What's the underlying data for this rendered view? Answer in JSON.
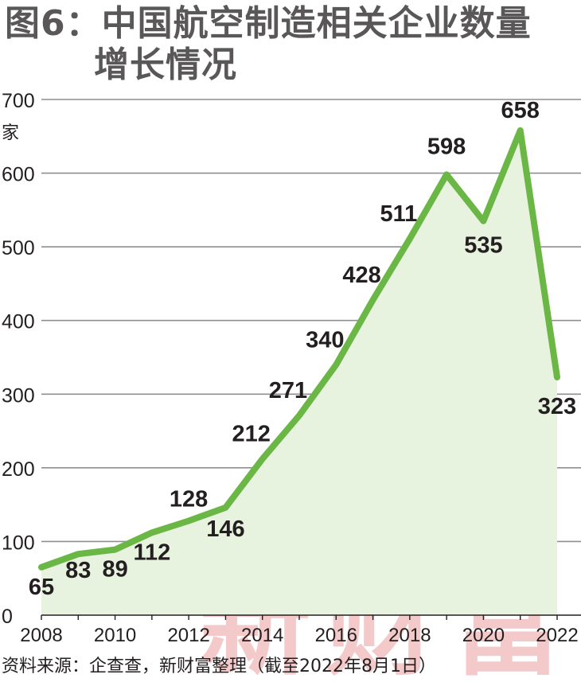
{
  "title_line1": "图6：中国航空制造相关企业数量",
  "title_line2": "增长情况",
  "source": "资料来源：企查查，新财富整理（截至2022年8月1日）",
  "watermark": "新财富",
  "chart_data": {
    "type": "area",
    "title": "图6：中国航空制造相关企业数量增长情况",
    "ylabel": "家",
    "xlabel": "",
    "x": [
      2008,
      2009,
      2010,
      2011,
      2012,
      2013,
      2014,
      2015,
      2016,
      2017,
      2018,
      2019,
      2020,
      2021,
      2022
    ],
    "values": [
      65,
      83,
      89,
      112,
      128,
      146,
      212,
      271,
      340,
      428,
      511,
      598,
      535,
      658,
      323
    ],
    "data_labels": [
      "65",
      "83",
      "89",
      "112",
      "128",
      "146",
      "212",
      "271",
      "340",
      "428",
      "511",
      "598",
      "535",
      "658",
      "323"
    ],
    "x_ticks": [
      2008,
      2010,
      2012,
      2014,
      2016,
      2018,
      2020,
      2022
    ],
    "x_tick_labels": [
      "2008",
      "2010",
      "2012",
      "2014",
      "2016",
      "2018",
      "2020",
      "2022"
    ],
    "y_ticks": [
      0,
      100,
      200,
      300,
      400,
      500,
      600,
      700
    ],
    "y_tick_labels": [
      "0",
      "100",
      "200",
      "300",
      "400",
      "500",
      "600",
      "700"
    ],
    "ylim": [
      0,
      700
    ],
    "xlim": [
      2008,
      2022
    ],
    "grid": true,
    "legend": "none",
    "colors": {
      "line": "#6ab746",
      "fill": "#e8f3df",
      "grid": "#8f8f8f",
      "watermark": "#f4c9c9",
      "title": "#595757"
    }
  }
}
